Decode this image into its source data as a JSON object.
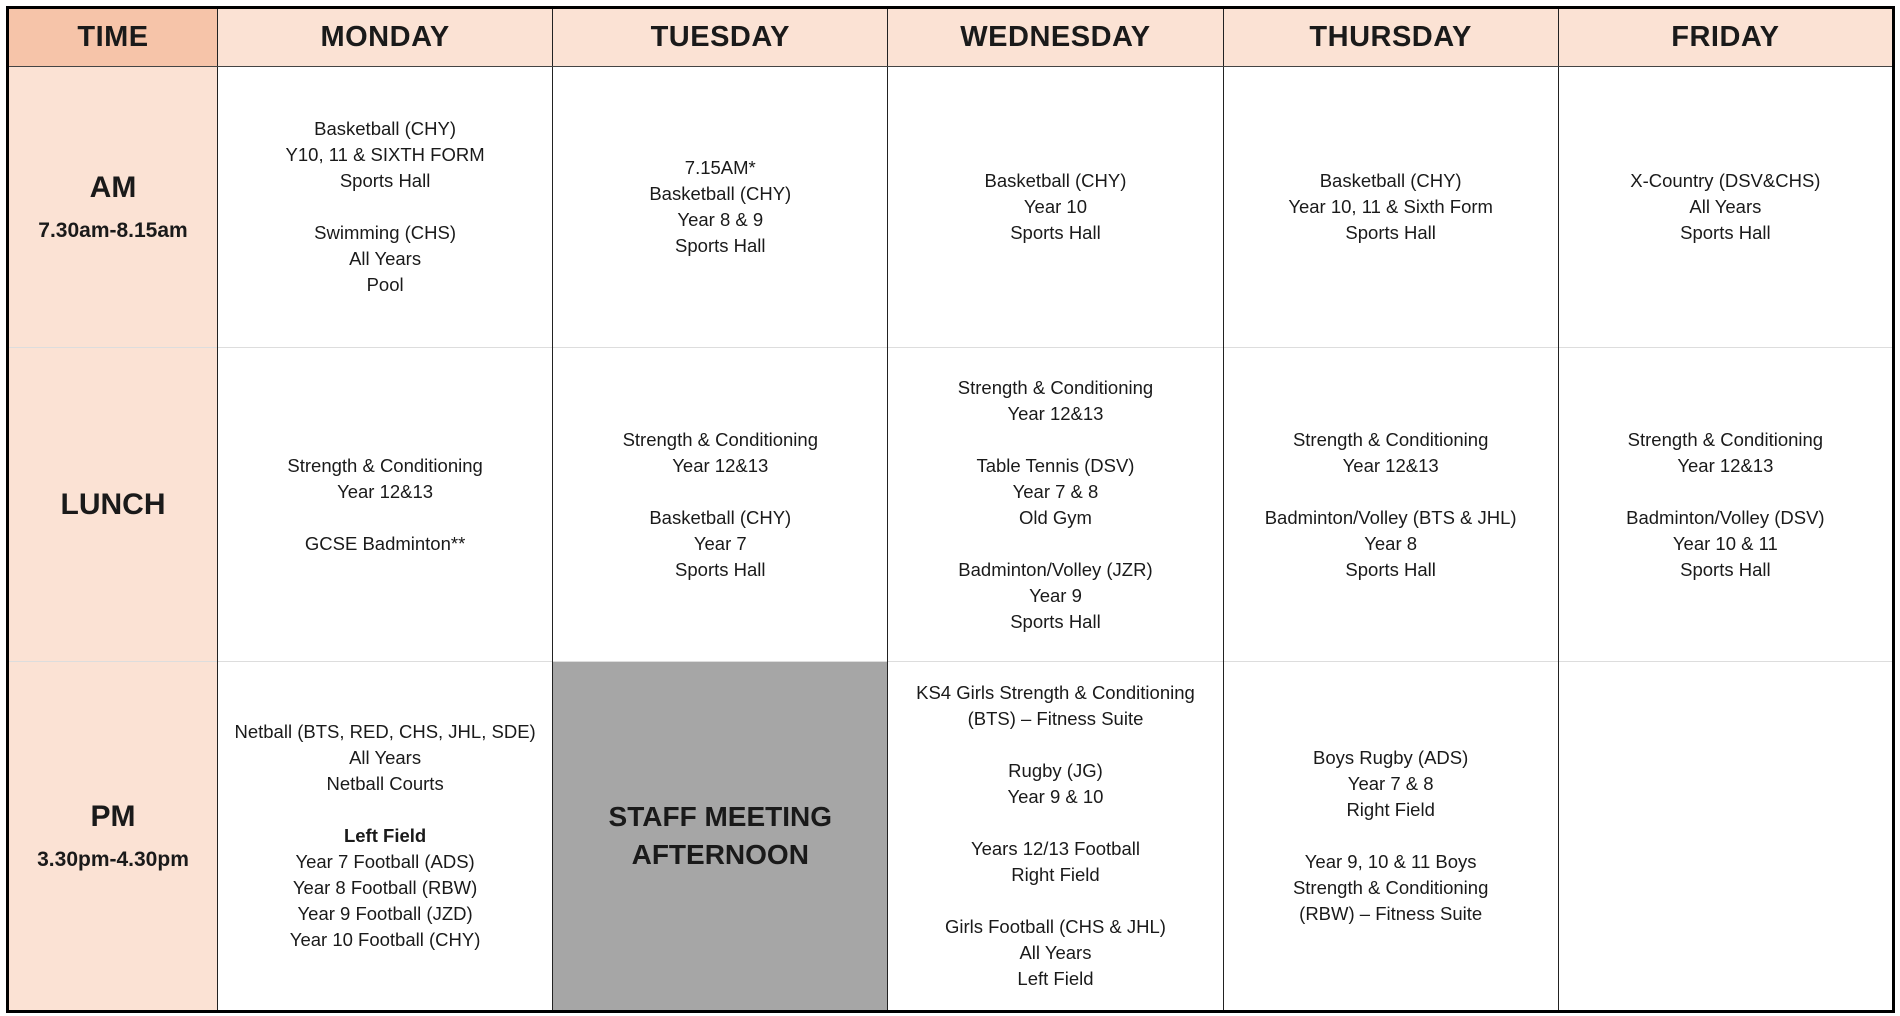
{
  "header": {
    "time": "TIME",
    "days": [
      "MONDAY",
      "TUESDAY",
      "WEDNESDAY",
      "THURSDAY",
      "FRIDAY"
    ]
  },
  "colors": {
    "header_bg": "#fbe2d4",
    "time_header_bg": "#f6c4a9",
    "staff_meeting_bg": "#a6a6a6"
  },
  "rows": [
    {
      "slot": "AM",
      "range": "7.30am-8.15am",
      "cells": [
        {
          "lines": [
            "Basketball (CHY)",
            "Y10, 11 & SIXTH FORM",
            "Sports Hall",
            "",
            "Swimming (CHS)",
            "All Years",
            "Pool"
          ]
        },
        {
          "lines": [
            "7.15AM*",
            "Basketball (CHY)",
            "Year 8 & 9",
            "Sports Hall"
          ]
        },
        {
          "lines": [
            "Basketball (CHY)",
            "Year 10",
            "Sports Hall"
          ]
        },
        {
          "lines": [
            "Basketball (CHY)",
            "Year 10, 11 & Sixth Form",
            "Sports Hall"
          ]
        },
        {
          "lines": [
            "X-Country (DSV&CHS)",
            "All Years",
            "Sports Hall"
          ]
        }
      ]
    },
    {
      "slot": "LUNCH",
      "range": "",
      "cells": [
        {
          "lines": [
            "Strength & Conditioning",
            "Year 12&13",
            "",
            "GCSE Badminton**"
          ]
        },
        {
          "lines": [
            "Strength & Conditioning",
            "Year 12&13",
            "",
            "Basketball (CHY)",
            "Year 7",
            "Sports Hall"
          ]
        },
        {
          "lines": [
            "Strength & Conditioning",
            "Year 12&13",
            "",
            "Table Tennis (DSV)",
            "Year 7 & 8",
            "Old Gym",
            "",
            "Badminton/Volley (JZR)",
            "Year 9",
            "Sports Hall"
          ]
        },
        {
          "lines": [
            "Strength & Conditioning",
            "Year 12&13",
            "",
            "Badminton/Volley (BTS & JHL)",
            "Year 8",
            "Sports Hall"
          ]
        },
        {
          "lines": [
            "Strength & Conditioning",
            "Year 12&13",
            "",
            "Badminton/Volley (DSV)",
            "Year 10 & 11",
            "Sports Hall"
          ]
        }
      ]
    },
    {
      "slot": "PM",
      "range": "3.30pm-4.30pm",
      "cells": [
        {
          "lines": [
            "Netball (BTS, RED, CHS, JHL, SDE)",
            "All Years",
            "Netball Courts",
            "",
            "**Left Field",
            "Year 7 Football (ADS)",
            "Year 8 Football (RBW)",
            "Year 9 Football (JZD)",
            "Year 10 Football (CHY)"
          ]
        },
        {
          "staff": [
            "STAFF MEETING",
            "AFTERNOON"
          ]
        },
        {
          "lines": [
            "KS4 Girls Strength & Conditioning",
            "(BTS) – Fitness Suite",
            "",
            "Rugby (JG)",
            "Year 9 & 10",
            "",
            "Years 12/13 Football",
            "Right Field",
            "",
            "Girls Football (CHS & JHL)",
            "All Years",
            "Left Field"
          ]
        },
        {
          "lines": [
            "Boys Rugby (ADS)",
            "Year 7 & 8",
            "Right Field",
            "",
            "Year 9, 10 & 11 Boys",
            "Strength & Conditioning",
            "(RBW) – Fitness Suite"
          ]
        },
        {
          "lines": []
        }
      ]
    }
  ]
}
